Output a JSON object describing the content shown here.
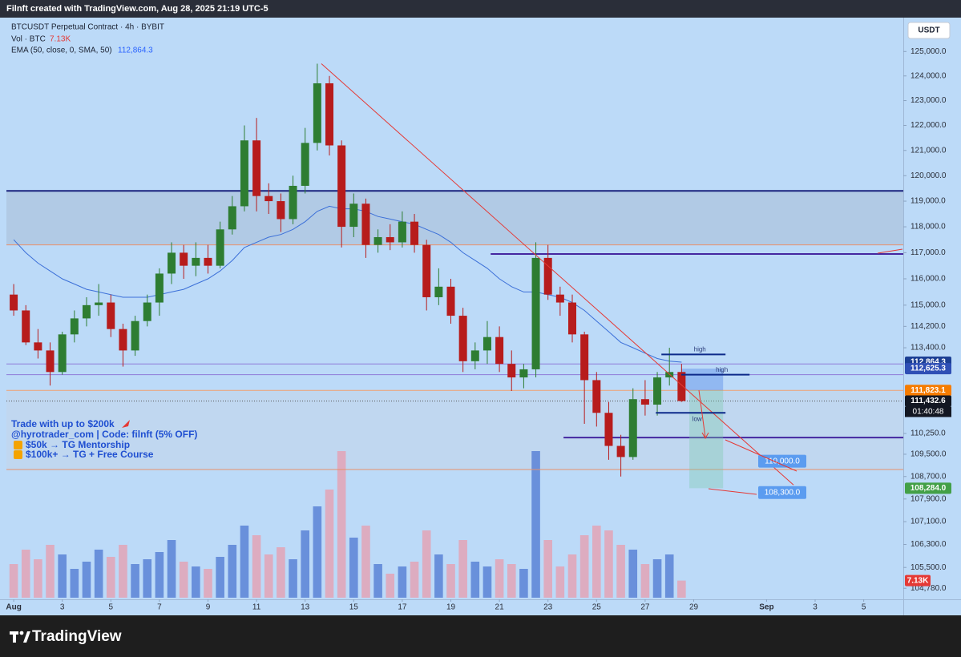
{
  "header": {
    "text": "Filnft created with TradingView.com, Aug 28, 2025 21:19 UTC-5"
  },
  "footer": {
    "brand": "TradingView"
  },
  "chart_data": {
    "type": "candlestick",
    "title": "BTCUSDT Perpetual Contract · 4h · BYBIT",
    "currency": "USDT",
    "log_scale": true,
    "grid": false,
    "ylim": [
      104400,
      126400
    ],
    "yticks": [
      {
        "value": 125000,
        "label": "125,000.0"
      },
      {
        "value": 124000,
        "label": "124,000.0"
      },
      {
        "value": 123000,
        "label": "123,000.0"
      },
      {
        "value": 122000,
        "label": "122,000.0"
      },
      {
        "value": 121000,
        "label": "121,000.0"
      },
      {
        "value": 120000,
        "label": "120,000.0"
      },
      {
        "value": 119000,
        "label": "119,000.0"
      },
      {
        "value": 118000,
        "label": "118,000.0"
      },
      {
        "value": 117000,
        "label": "117,000.0"
      },
      {
        "value": 116000,
        "label": "116,000.0"
      },
      {
        "value": 115000,
        "label": "115,000.0"
      },
      {
        "value": 114200,
        "label": "114,200.0"
      },
      {
        "value": 113400,
        "label": "113,400.0"
      },
      {
        "value": 110250,
        "label": "110,250.0"
      },
      {
        "value": 109500,
        "label": "109,500.0"
      },
      {
        "value": 108700,
        "label": "108,700.0"
      },
      {
        "value": 107900,
        "label": "107,900.0"
      },
      {
        "value": 107100,
        "label": "107,100.0"
      },
      {
        "value": 106300,
        "label": "106,300.0"
      },
      {
        "value": 105500,
        "label": "105,500.0"
      },
      {
        "value": 104780,
        "label": "104,780.0"
      }
    ],
    "xlim": [
      0.7,
      37.63
    ],
    "xticks": [
      {
        "value": 1,
        "label": "Aug"
      },
      3,
      5,
      7,
      9,
      11,
      13,
      15,
      17,
      19,
      21,
      23,
      25,
      27,
      29,
      {
        "value": 32,
        "label": "Sep"
      },
      {
        "value": 34,
        "label": "3"
      },
      {
        "value": 36,
        "label": "5"
      }
    ],
    "x": [
      1,
      1.5,
      2,
      2.5,
      3,
      3.5,
      4,
      4.5,
      5,
      5.5,
      6,
      6.5,
      7,
      7.5,
      8,
      8.5,
      9,
      9.5,
      10,
      10.5,
      11,
      11.5,
      12,
      12.5,
      13,
      13.5,
      14,
      14.5,
      15,
      15.5,
      16,
      16.5,
      17,
      17.5,
      18,
      18.5,
      19,
      19.5,
      20,
      20.5,
      21,
      21.5,
      22,
      22.5,
      23,
      23.5,
      24,
      24.5,
      25,
      25.5,
      26,
      26.5,
      27,
      27.5,
      28,
      28.5
    ],
    "series": [
      {
        "name": "BTCUSDT",
        "up_color": "#2e7d32",
        "down_color": "#b71c1c",
        "open": [
          115400,
          114800,
          113600,
          113300,
          112500,
          113900,
          114500,
          115000,
          115100,
          114100,
          113300,
          114400,
          115100,
          116200,
          117000,
          116500,
          116800,
          116500,
          117900,
          118800,
          121400,
          119200,
          119000,
          118300,
          119600,
          121300,
          123700,
          121200,
          118000,
          118900,
          117300,
          117600,
          117400,
          118200,
          117300,
          115300,
          115700,
          114600,
          112900,
          113300,
          113800,
          112800,
          112300,
          112600,
          116800,
          115400,
          115100,
          113900,
          112200,
          111000,
          109800,
          109400,
          111500,
          111300,
          112300,
          112500
        ],
        "high": [
          115800,
          115000,
          114100,
          113600,
          114000,
          114800,
          115300,
          115800,
          115400,
          114300,
          114600,
          115400,
          116400,
          117400,
          117300,
          117400,
          117300,
          118200,
          119200,
          122000,
          122300,
          119700,
          119300,
          120000,
          121900,
          124500,
          124000,
          121400,
          119300,
          119100,
          117900,
          118100,
          118600,
          118500,
          117500,
          116400,
          116000,
          114900,
          113600,
          114400,
          114200,
          113300,
          112800,
          117400,
          117300,
          115700,
          115400,
          114000,
          112500,
          111400,
          110200,
          111900,
          112200,
          112500,
          113400,
          112800
        ],
        "low": [
          114600,
          113500,
          113000,
          112000,
          112400,
          113600,
          114200,
          114600,
          113800,
          112700,
          113100,
          114200,
          114600,
          115800,
          116000,
          116100,
          116200,
          116400,
          117700,
          118600,
          118600,
          118500,
          117800,
          118100,
          119300,
          121000,
          120800,
          117200,
          117600,
          116800,
          117000,
          117100,
          117200,
          117000,
          114800,
          115000,
          114300,
          112500,
          112600,
          112800,
          112500,
          111800,
          111900,
          112300,
          115200,
          114600,
          113600,
          110600,
          110500,
          109300,
          108700,
          109300,
          110900,
          110900,
          112000,
          111400
        ],
        "close": [
          114800,
          113600,
          113300,
          112500,
          113900,
          114500,
          115000,
          115100,
          114100,
          113300,
          114400,
          115100,
          116200,
          117000,
          116500,
          116800,
          116500,
          117900,
          118800,
          121400,
          119200,
          119000,
          118300,
          119600,
          121300,
          123700,
          121200,
          118000,
          118900,
          117300,
          117600,
          117400,
          118200,
          117300,
          115300,
          115700,
          114600,
          112900,
          113300,
          113800,
          112800,
          112300,
          112600,
          116800,
          115400,
          115100,
          113900,
          112200,
          111000,
          109800,
          109400,
          111500,
          111300,
          112300,
          112500,
          111432.6
        ]
      }
    ],
    "ema": {
      "name": "EMA (50, close, 0, SMA, 50)",
      "color": "#3b6fd8",
      "value_label": "112,864.3",
      "values": [
        117500,
        117000,
        116600,
        116300,
        116000,
        115800,
        115600,
        115500,
        115400,
        115300,
        115300,
        115300,
        115400,
        115500,
        115600,
        115800,
        116000,
        116300,
        116700,
        117200,
        117400,
        117600,
        117700,
        117900,
        118200,
        118600,
        118800,
        118700,
        118700,
        118600,
        118400,
        118300,
        118200,
        118100,
        117900,
        117700,
        117400,
        117000,
        116700,
        116400,
        116000,
        115700,
        115500,
        115500,
        115400,
        115300,
        115100,
        114800,
        114400,
        114000,
        113600,
        113400,
        113200,
        113000,
        112900,
        112864.3
      ]
    },
    "volume": {
      "name": "Vol · BTC",
      "last_label": "7.13K",
      "up_color": "#5b82d6",
      "down_color": "#e3a3b6",
      "label_color": "#e53935",
      "ylim": [
        0,
        80000
      ],
      "values": [
        14000,
        20000,
        16000,
        22000,
        18000,
        12000,
        15000,
        20000,
        17000,
        22000,
        14000,
        16000,
        19000,
        24000,
        15000,
        13000,
        12000,
        17000,
        22000,
        30000,
        26000,
        18000,
        21000,
        16000,
        28000,
        38000,
        45000,
        61000,
        25000,
        30000,
        14000,
        10000,
        13000,
        15000,
        28000,
        18000,
        14000,
        24000,
        15000,
        13000,
        16000,
        14000,
        12000,
        61000,
        24000,
        13000,
        18000,
        26000,
        30000,
        28000,
        22000,
        20000,
        14000,
        16000,
        18000,
        7130
      ]
    },
    "price_labels": [
      {
        "value": 112864.3,
        "label": "112,864.3",
        "color": "#1c3f94"
      },
      {
        "value": 112625.3,
        "label": "112,625.3",
        "color": "#2f4fb5"
      },
      {
        "value": 111823.1,
        "label": "111,823.1",
        "color": "#f57c00"
      },
      {
        "value": 111432.6,
        "label": "111,432.6",
        "color": "#131722",
        "countdown": "01:40:48"
      },
      {
        "value": 108284.0,
        "label": "108,284.0",
        "color": "#43a047"
      }
    ],
    "zones": [
      {
        "from": 117300,
        "to": 119400,
        "color": "rgba(150,160,180,0.28)"
      },
      {
        "from": 108950,
        "to": 111823.1,
        "color": "rgba(200,210,225,0.35)"
      }
    ],
    "levels": [
      {
        "price": 119400,
        "color": "#1a237e",
        "width": 2
      },
      {
        "price": 117300,
        "color": "#e8906a",
        "width": 1
      },
      {
        "price": 116950,
        "color": "#4527a0",
        "width": 2,
        "from": 20.64
      },
      {
        "price": 112800,
        "color": "#8e7ad8",
        "width": 1
      },
      {
        "price": 112400,
        "color": "#8e7ad8",
        "width": 1
      },
      {
        "price": 111823.1,
        "color": "#f0a070",
        "width": 1
      },
      {
        "price": 110100,
        "color": "#4527a0",
        "width": 2,
        "from": 23.64
      },
      {
        "price": 108950,
        "color": "#e8906a",
        "width": 1
      }
    ],
    "segments": [
      {
        "price": 113150,
        "from": 27.67,
        "to": 30.31,
        "label": "high"
      },
      {
        "price": 112400,
        "from": 28.49,
        "to": 31.3,
        "label": "high"
      },
      {
        "price": 111000,
        "from": 27.44,
        "to": 30.31,
        "label": "low"
      }
    ],
    "trendline": {
      "x": [
        13.67,
        33.11
      ],
      "y": [
        124500,
        108400
      ],
      "color": "#e53935"
    },
    "targets": [
      {
        "value": 110000,
        "label": "110,000.0"
      },
      {
        "value": 108300,
        "label": "108,300.0"
      }
    ],
    "notes": [
      "Trade with up to $200k",
      "@hyrotrader_com | Code: filnft (5% OFF)",
      "$50k → TG Mentorship",
      "$100k+ → TG + Free Course"
    ]
  }
}
